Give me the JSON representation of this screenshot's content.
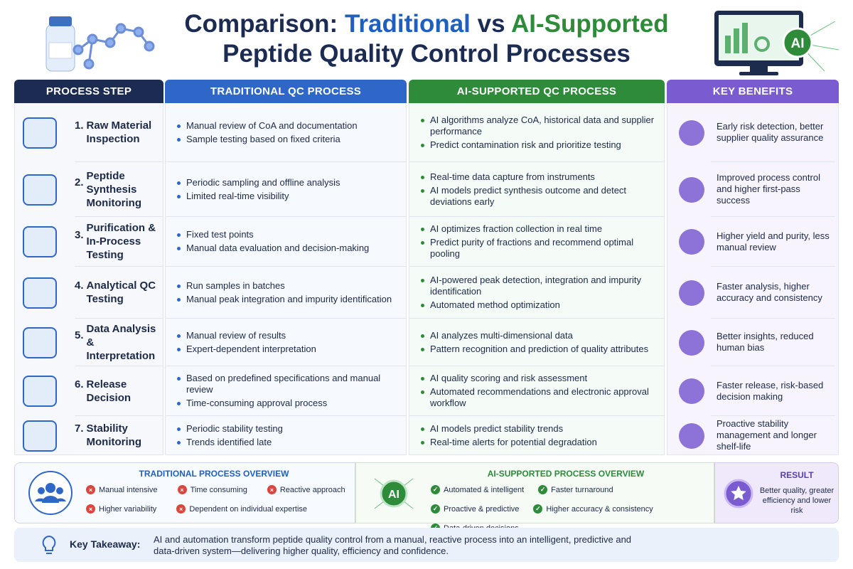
{
  "header": {
    "title_prefix": "Comparison:",
    "title_traditional": "Traditional",
    "title_vs": "vs",
    "title_ai": "AI-Supported",
    "title_line2": "Peptide Quality Control Processes",
    "badge": "AI"
  },
  "table": {
    "headers": [
      "PROCESS STEP",
      "TRADITIONAL QC PROCESS",
      "AI-SUPPORTED QC PROCESS",
      "KEY BENEFITS"
    ],
    "rows": [
      {
        "number": "1.",
        "step": "Raw Material Inspection",
        "traditional": [
          "Manual review of CoA and documentation",
          "Sample testing based on fixed criteria"
        ],
        "ai": [
          "AI algorithms analyze CoA, historical data and supplier performance",
          "Predict contamination risk and prioritize testing"
        ],
        "benefit": "Early risk detection, better supplier quality assurance"
      },
      {
        "number": "2.",
        "step": "Peptide Synthesis Monitoring",
        "traditional": [
          "Periodic sampling and offline analysis",
          "Limited real-time visibility"
        ],
        "ai": [
          "Real-time data capture from instruments",
          "AI models predict synthesis outcome and detect deviations early"
        ],
        "benefit": "Improved process control and higher first-pass success"
      },
      {
        "number": "3.",
        "step": "Purification & In-Process Testing",
        "traditional": [
          "Fixed test points",
          "Manual data evaluation and decision-making"
        ],
        "ai": [
          "AI optimizes fraction collection in real time",
          "Predict purity of fractions and recommend optimal pooling"
        ],
        "benefit": "Higher yield and purity, less manual review"
      },
      {
        "number": "4.",
        "step": "Analytical QC Testing",
        "traditional": [
          "Run samples in batches",
          "Manual peak integration and impurity identification"
        ],
        "ai": [
          "AI-powered peak detection, integration and impurity identification",
          "Automated method optimization"
        ],
        "benefit": "Faster analysis, higher accuracy and consistency"
      },
      {
        "number": "5.",
        "step": "Data Analysis & Interpretation",
        "traditional": [
          "Manual review of results",
          "Expert-dependent interpretation"
        ],
        "ai": [
          "AI analyzes multi-dimensional data",
          "Pattern recognition and prediction of quality attributes"
        ],
        "benefit": "Better insights, reduced human bias"
      },
      {
        "number": "6.",
        "step": "Release Decision",
        "traditional": [
          "Based on predefined specifications and manual review",
          "Time-consuming approval process"
        ],
        "ai": [
          "AI quality scoring and risk assessment",
          "Automated recommendations and electronic approval workflow"
        ],
        "benefit": "Faster release, risk-based decision making"
      },
      {
        "number": "7.",
        "step": "Stability Monitoring",
        "traditional": [
          "Periodic stability testing",
          "Trends identified late"
        ],
        "ai": [
          "AI models predict stability trends",
          "Real-time alerts for potential degradation"
        ],
        "benefit": "Proactive stability management and longer shelf-life"
      }
    ]
  },
  "overview": {
    "traditional": {
      "title": "TRADITIONAL PROCESS OVERVIEW",
      "items": [
        "Manual intensive",
        "Time consuming",
        "Reactive approach",
        "Higher variability",
        "Dependent on individual expertise"
      ]
    },
    "ai": {
      "title": "AI-SUPPORTED PROCESS OVERVIEW",
      "badge": "AI",
      "items": [
        "Automated & intelligent",
        "Faster turnaround",
        "Proactive & predictive",
        "Higher accuracy & consistency",
        "Data-driven decisions"
      ]
    },
    "result": {
      "title": "RESULT",
      "text": "Better quality, greater efficiency and lower risk"
    }
  },
  "takeaway": {
    "label": "Key Takeaway:",
    "text": "AI and automation transform peptide quality control from a manual, reactive process into an intelligent, predictive and data-driven system—delivering higher quality, efficiency and confidence."
  }
}
